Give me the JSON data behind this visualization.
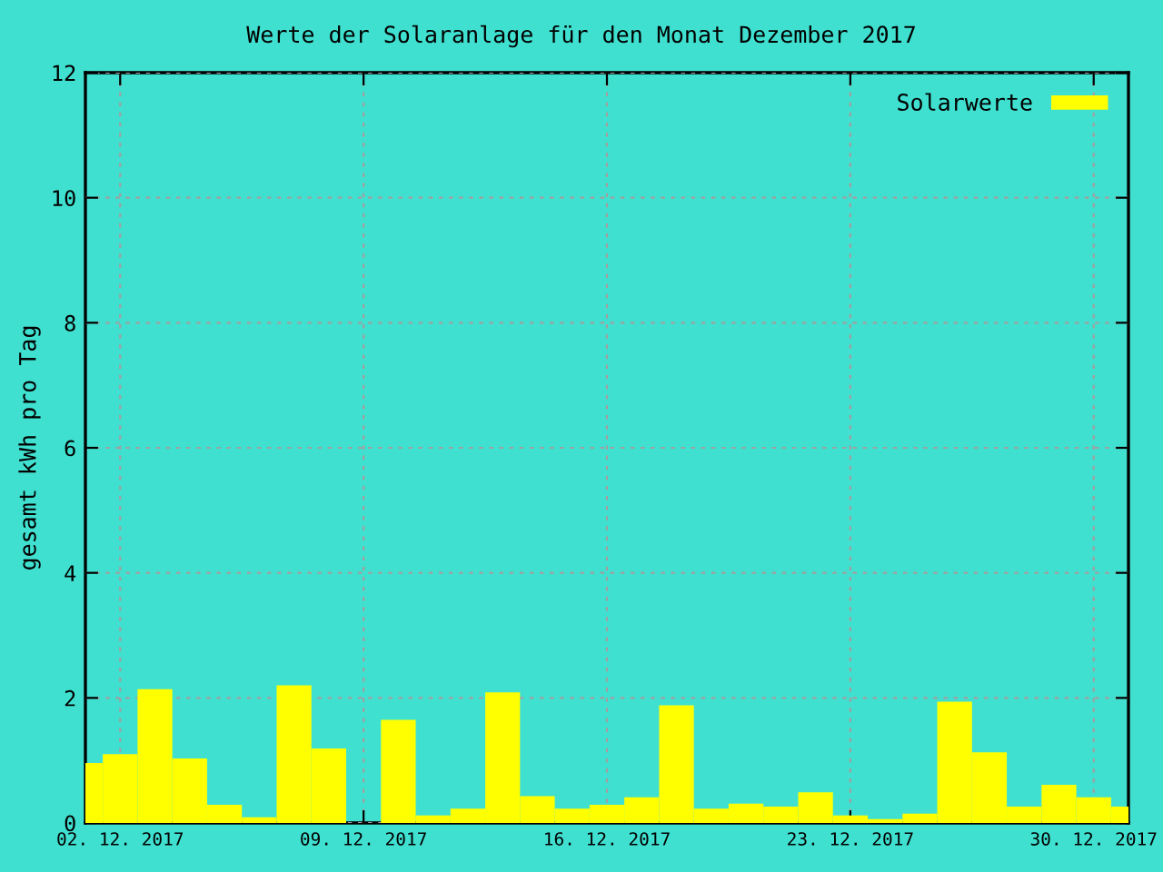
{
  "chart_data": {
    "type": "bar",
    "title": "Werte der Solaranlage für den Monat Dezember 2017",
    "ylabel": "gesamt kWh pro Tag",
    "x": [
      "2017-12-01",
      "2017-12-02",
      "2017-12-03",
      "2017-12-04",
      "2017-12-05",
      "2017-12-06",
      "2017-12-07",
      "2017-12-08",
      "2017-12-09",
      "2017-12-10",
      "2017-12-11",
      "2017-12-12",
      "2017-12-13",
      "2017-12-14",
      "2017-12-15",
      "2017-12-16",
      "2017-12-17",
      "2017-12-18",
      "2017-12-19",
      "2017-12-20",
      "2017-12-21",
      "2017-12-22",
      "2017-12-23",
      "2017-12-24",
      "2017-12-25",
      "2017-12-26",
      "2017-12-27",
      "2017-12-28",
      "2017-12-29",
      "2017-12-30",
      "2017-12-31"
    ],
    "series": [
      {
        "name": "Solarwerte",
        "color": "#ffff00",
        "values": [
          0.96,
          1.1,
          2.14,
          1.03,
          0.29,
          0.09,
          2.2,
          1.19,
          null,
          1.65,
          0.12,
          0.23,
          2.09,
          0.43,
          0.23,
          0.29,
          0.41,
          1.88,
          0.23,
          0.31,
          0.26,
          0.49,
          0.12,
          0.06,
          0.15,
          1.94,
          1.13,
          0.26,
          0.61,
          0.41,
          0.26
        ]
      }
    ],
    "xlim": [
      "2017-12-01",
      "2017-12-31"
    ],
    "xticks": [
      {
        "value": "2017-12-02",
        "label": "02. 12. 2017"
      },
      {
        "value": "2017-12-09",
        "label": "09. 12. 2017"
      },
      {
        "value": "2017-12-16",
        "label": "16. 12. 2017"
      },
      {
        "value": "2017-12-23",
        "label": "23. 12. 2017"
      },
      {
        "value": "2017-12-30",
        "label": "30. 12. 2017"
      }
    ],
    "ylim": [
      0,
      12
    ],
    "yticks": [
      0,
      2,
      4,
      6,
      8,
      10,
      12
    ],
    "grid": true,
    "legend": "top right"
  }
}
